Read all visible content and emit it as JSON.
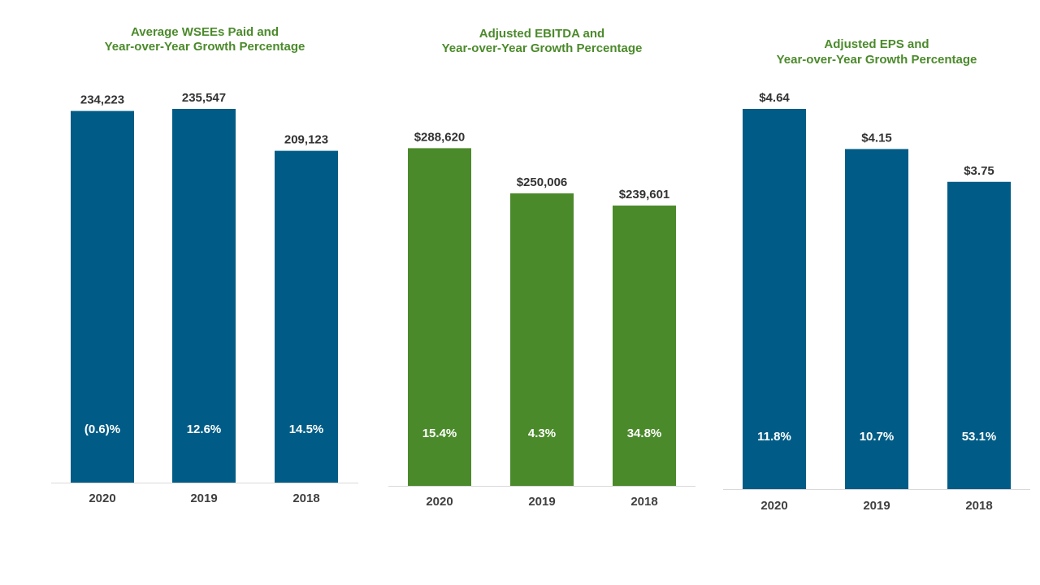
{
  "chart_data": [
    {
      "type": "bar",
      "title_lines": [
        "Average WSEEs Paid and",
        "Year-over-Year  Growth Percentage"
      ],
      "categories": [
        "2020",
        "2019",
        "2018"
      ],
      "values": [
        234223,
        235547,
        209123
      ],
      "value_labels": [
        "234,223",
        "235,547",
        "209,123"
      ],
      "growth_labels": [
        "(0.6)%",
        "12.6%",
        "14.5%"
      ],
      "color": "#005c86",
      "title_color": "#4b8a2b",
      "ylim": [
        0,
        235547
      ]
    },
    {
      "type": "bar",
      "title_lines": [
        "Adjusted EBITDA and",
        "Year-over-Year  Growth Percentage"
      ],
      "categories": [
        "2020",
        "2019",
        "2018"
      ],
      "values": [
        288620,
        250006,
        239601
      ],
      "value_labels": [
        "$288,620",
        "$250,006",
        "$239,601"
      ],
      "growth_labels": [
        "15.4%",
        "4.3%",
        "34.8%"
      ],
      "color": "#4b8a2b",
      "title_color": "#4b8a2b",
      "ylim": [
        0,
        325000
      ]
    },
    {
      "type": "bar",
      "title_lines": [
        "Adjusted EPS and",
        "Year-over-Year  Growth Percentage"
      ],
      "categories": [
        "2020",
        "2019",
        "2018"
      ],
      "values": [
        4.64,
        4.15,
        3.75
      ],
      "value_labels": [
        "$4.64",
        "$4.15",
        "$3.75"
      ],
      "growth_labels": [
        "11.8%",
        "10.7%",
        "53.1%"
      ],
      "color": "#005c86",
      "title_color": "#4b8a2b",
      "ylim": [
        0,
        4.64
      ]
    }
  ]
}
